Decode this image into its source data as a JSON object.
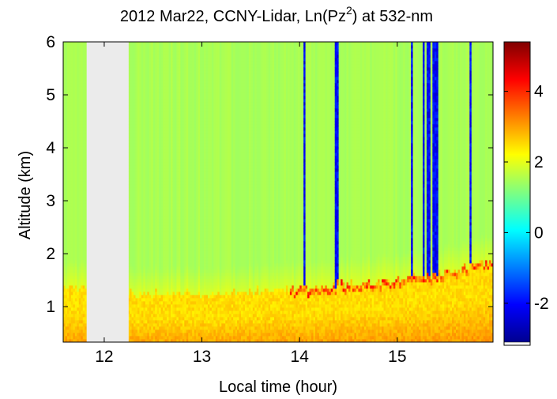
{
  "chart_data": {
    "type": "heatmap",
    "title": "2012 Mar22, CCNY-Lidar, Ln(Pz",
    "title_superscript": "2",
    "title_suffix": ") at 532-nm",
    "xlabel": "Local time (hour)",
    "ylabel": "Altitude (km)",
    "xlim": [
      11.58,
      15.98
    ],
    "ylim": [
      0.33,
      6.0
    ],
    "xticks": [
      "12",
      "13",
      "14",
      "15"
    ],
    "yticks": [
      "1",
      "2",
      "3",
      "4",
      "5",
      "6"
    ],
    "colorbar": {
      "colormap": "jet",
      "clim": [
        -3.1,
        5.4
      ],
      "ticks": [
        "-2",
        "0",
        "2",
        "4"
      ],
      "tick_values": [
        -2,
        0,
        2,
        4
      ]
    },
    "no_data_interval_hours": [
      11.82,
      12.25
    ],
    "background_value_free_troposphere": 1.5,
    "boundary_layer": {
      "description_points_time_hour": [
        11.58,
        12.25,
        13.0,
        13.5,
        14.0,
        14.5,
        15.0,
        15.5,
        15.98
      ],
      "top_altitude_km": [
        1.4,
        1.25,
        1.25,
        1.3,
        1.35,
        1.45,
        1.5,
        1.65,
        1.9
      ],
      "value_in_layer": 2.5,
      "value_near_surface": 3.3
    },
    "low_signal_streaks_time_hour": [
      14.05,
      14.38,
      15.15,
      15.27,
      15.32,
      15.37,
      15.4,
      15.75
    ]
  }
}
